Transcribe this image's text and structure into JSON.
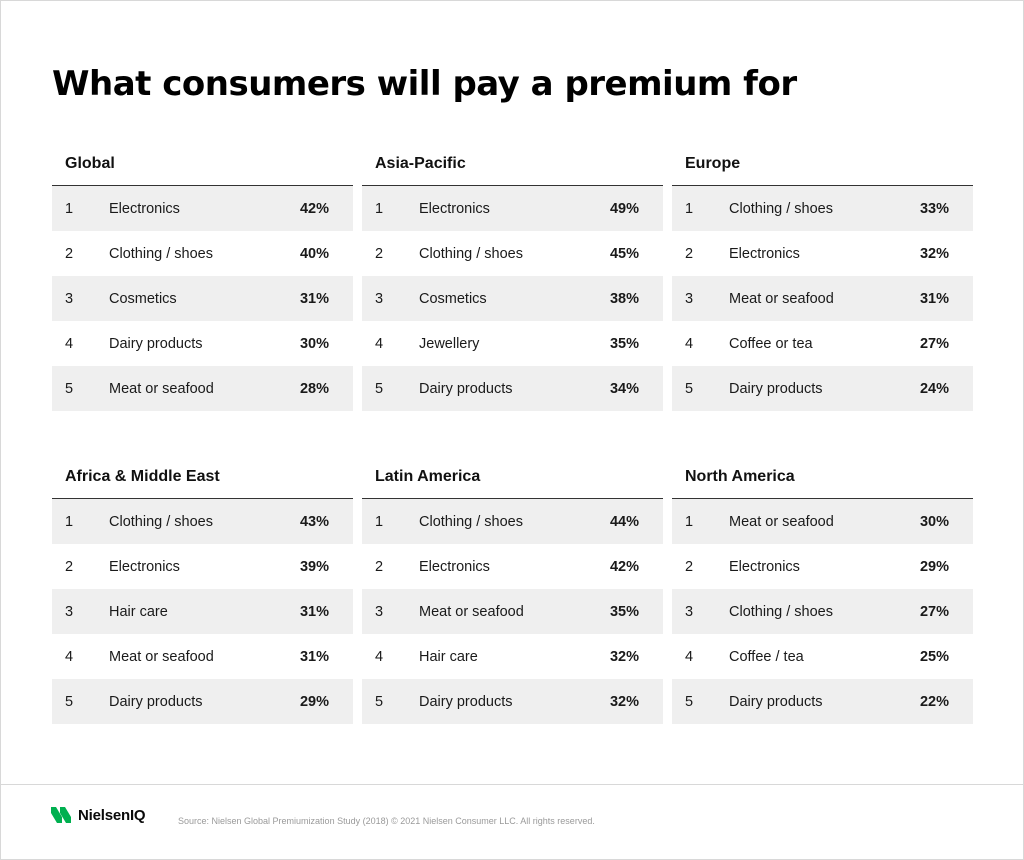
{
  "title": "What consumers will pay a premium for",
  "regions": [
    {
      "name": "Global",
      "rows": [
        {
          "rank": "1",
          "item": "Electronics",
          "pct": "42%"
        },
        {
          "rank": "2",
          "item": "Clothing / shoes",
          "pct": "40%"
        },
        {
          "rank": "3",
          "item": "Cosmetics",
          "pct": "31%"
        },
        {
          "rank": "4",
          "item": "Dairy products",
          "pct": "30%"
        },
        {
          "rank": "5",
          "item": "Meat or seafood",
          "pct": "28%"
        }
      ]
    },
    {
      "name": "Asia-Pacific",
      "rows": [
        {
          "rank": "1",
          "item": "Electronics",
          "pct": "49%"
        },
        {
          "rank": "2",
          "item": "Clothing / shoes",
          "pct": "45%"
        },
        {
          "rank": "3",
          "item": "Cosmetics",
          "pct": "38%"
        },
        {
          "rank": "4",
          "item": "Jewellery",
          "pct": "35%"
        },
        {
          "rank": "5",
          "item": "Dairy products",
          "pct": "34%"
        }
      ]
    },
    {
      "name": "Europe",
      "rows": [
        {
          "rank": "1",
          "item": "Clothing / shoes",
          "pct": "33%"
        },
        {
          "rank": "2",
          "item": "Electronics",
          "pct": "32%"
        },
        {
          "rank": "3",
          "item": "Meat or seafood",
          "pct": "31%"
        },
        {
          "rank": "4",
          "item": "Coffee or tea",
          "pct": "27%"
        },
        {
          "rank": "5",
          "item": "Dairy products",
          "pct": "24%"
        }
      ]
    },
    {
      "name": "Africa & Middle East",
      "rows": [
        {
          "rank": "1",
          "item": "Clothing / shoes",
          "pct": "43%"
        },
        {
          "rank": "2",
          "item": "Electronics",
          "pct": "39%"
        },
        {
          "rank": "3",
          "item": "Hair care",
          "pct": "31%"
        },
        {
          "rank": "4",
          "item": "Meat or seafood",
          "pct": "31%"
        },
        {
          "rank": "5",
          "item": "Dairy products",
          "pct": "29%"
        }
      ]
    },
    {
      "name": "Latin America",
      "rows": [
        {
          "rank": "1",
          "item": "Clothing / shoes",
          "pct": "44%"
        },
        {
          "rank": "2",
          "item": "Electronics",
          "pct": "42%"
        },
        {
          "rank": "3",
          "item": "Meat or seafood",
          "pct": "35%"
        },
        {
          "rank": "4",
          "item": "Hair care",
          "pct": "32%"
        },
        {
          "rank": "5",
          "item": "Dairy products",
          "pct": "32%"
        }
      ]
    },
    {
      "name": "North America",
      "rows": [
        {
          "rank": "1",
          "item": "Meat or seafood",
          "pct": "30%"
        },
        {
          "rank": "2",
          "item": "Electronics",
          "pct": "29%"
        },
        {
          "rank": "3",
          "item": "Clothing / shoes",
          "pct": "27%"
        },
        {
          "rank": "4",
          "item": "Coffee / tea",
          "pct": "25%"
        },
        {
          "rank": "5",
          "item": "Dairy products",
          "pct": "22%"
        }
      ]
    }
  ],
  "footer": {
    "logo_text": "NielsenIQ",
    "logo_icon": "nielseniq-logo-icon",
    "brand_color": "#00b050",
    "source": "Source: Nielsen Global Premiumization Study (2018) © 2021 Nielsen Consumer LLC. All rights reserved."
  }
}
